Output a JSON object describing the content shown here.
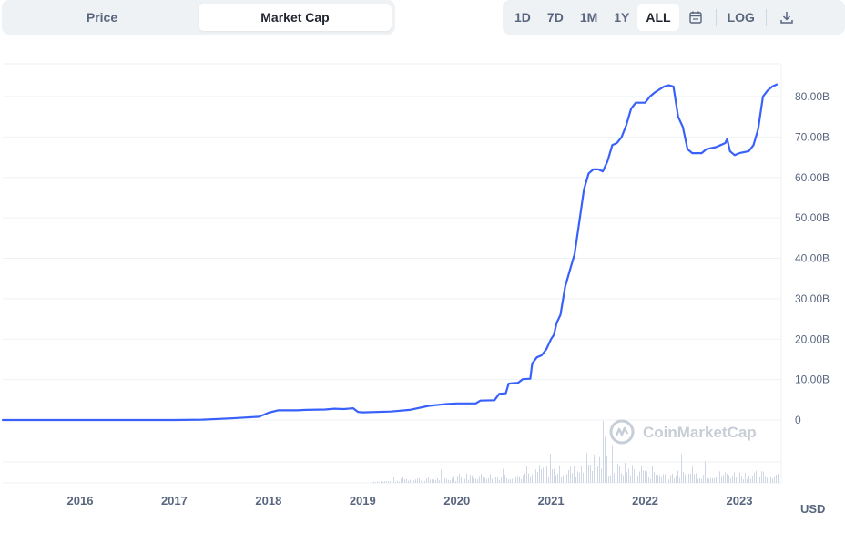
{
  "toggle": {
    "price_label": "Price",
    "market_cap_label": "Market Cap",
    "active": "market_cap"
  },
  "range": {
    "buttons": [
      "1D",
      "7D",
      "1M",
      "1Y",
      "ALL"
    ],
    "active": "ALL",
    "log_label": "LOG"
  },
  "icons": {
    "calendar": "calendar-icon",
    "download": "download-icon",
    "watermark": "coinmarketcap-logo-icon"
  },
  "watermark": {
    "text": "CoinMarketCap"
  },
  "currency": "USD",
  "colors": {
    "line": "#3861fb",
    "grid": "#eff2f5",
    "volume": "#cfd6e4",
    "text": "#58667e"
  },
  "chart_data": {
    "type": "line",
    "title": "",
    "xlabel": "",
    "ylabel": "",
    "y_unit": "B",
    "ylim": [
      0,
      85
    ],
    "xlim": [
      2015.15,
      2023.4
    ],
    "x_ticks": [
      {
        "value": 2016,
        "label": "2016"
      },
      {
        "value": 2017,
        "label": "2017"
      },
      {
        "value": 2018,
        "label": "2018"
      },
      {
        "value": 2019,
        "label": "2019"
      },
      {
        "value": 2020,
        "label": "2020"
      },
      {
        "value": 2021,
        "label": "2021"
      },
      {
        "value": 2022,
        "label": "2022"
      },
      {
        "value": 2023,
        "label": "2023"
      }
    ],
    "y_ticks": [
      {
        "value": 0,
        "label": "0"
      },
      {
        "value": 10,
        "label": "10.00B"
      },
      {
        "value": 20,
        "label": "20.00B"
      },
      {
        "value": 30,
        "label": "30.00B"
      },
      {
        "value": 40,
        "label": "40.00B"
      },
      {
        "value": 50,
        "label": "50.00B"
      },
      {
        "value": 60,
        "label": "60.00B"
      },
      {
        "value": 70,
        "label": "70.00B"
      },
      {
        "value": 80,
        "label": "80.00B"
      }
    ],
    "grid": true,
    "series": [
      {
        "values": [
          [
            2015.15,
            0.0
          ],
          [
            2016.0,
            0.0
          ],
          [
            2017.0,
            0.0
          ],
          [
            2017.3,
            0.1
          ],
          [
            2017.6,
            0.4
          ],
          [
            2017.9,
            0.8
          ],
          [
            2018.0,
            1.8
          ],
          [
            2018.1,
            2.4
          ],
          [
            2018.3,
            2.4
          ],
          [
            2018.4,
            2.5
          ],
          [
            2018.6,
            2.6
          ],
          [
            2018.7,
            2.8
          ],
          [
            2018.8,
            2.7
          ],
          [
            2018.9,
            2.9
          ],
          [
            2018.95,
            2.0
          ],
          [
            2019.0,
            1.9
          ],
          [
            2019.3,
            2.1
          ],
          [
            2019.5,
            2.5
          ],
          [
            2019.7,
            3.5
          ],
          [
            2019.9,
            4.0
          ],
          [
            2020.0,
            4.1
          ],
          [
            2020.2,
            4.1
          ],
          [
            2020.25,
            4.8
          ],
          [
            2020.4,
            4.9
          ],
          [
            2020.45,
            6.5
          ],
          [
            2020.52,
            6.6
          ],
          [
            2020.55,
            9.0
          ],
          [
            2020.6,
            9.1
          ],
          [
            2020.65,
            9.2
          ],
          [
            2020.7,
            10.1
          ],
          [
            2020.78,
            10.2
          ],
          [
            2020.8,
            14.0
          ],
          [
            2020.85,
            15.5
          ],
          [
            2020.9,
            16.0
          ],
          [
            2020.95,
            17.5
          ],
          [
            2021.0,
            20.0
          ],
          [
            2021.03,
            21.0
          ],
          [
            2021.06,
            24.0
          ],
          [
            2021.1,
            26.0
          ],
          [
            2021.15,
            33.0
          ],
          [
            2021.2,
            37.0
          ],
          [
            2021.25,
            41.0
          ],
          [
            2021.3,
            49.0
          ],
          [
            2021.35,
            57.0
          ],
          [
            2021.4,
            61.0
          ],
          [
            2021.45,
            62.0
          ],
          [
            2021.5,
            62.0
          ],
          [
            2021.55,
            61.5
          ],
          [
            2021.6,
            64.0
          ],
          [
            2021.65,
            68.0
          ],
          [
            2021.7,
            68.5
          ],
          [
            2021.75,
            70.0
          ],
          [
            2021.8,
            73.0
          ],
          [
            2021.85,
            77.0
          ],
          [
            2021.9,
            78.5
          ],
          [
            2022.0,
            78.5
          ],
          [
            2022.05,
            80.0
          ],
          [
            2022.1,
            81.0
          ],
          [
            2022.2,
            82.5
          ],
          [
            2022.25,
            82.8
          ],
          [
            2022.3,
            82.5
          ],
          [
            2022.35,
            75.0
          ],
          [
            2022.4,
            72.5
          ],
          [
            2022.45,
            67.0
          ],
          [
            2022.5,
            66.0
          ],
          [
            2022.6,
            66.0
          ],
          [
            2022.65,
            67.0
          ],
          [
            2022.75,
            67.5
          ],
          [
            2022.8,
            68.0
          ],
          [
            2022.85,
            68.5
          ],
          [
            2022.87,
            69.5
          ],
          [
            2022.9,
            66.5
          ],
          [
            2022.95,
            65.5
          ],
          [
            2023.0,
            66.0
          ],
          [
            2023.1,
            66.5
          ],
          [
            2023.15,
            68.0
          ],
          [
            2023.2,
            72.0
          ],
          [
            2023.25,
            80.0
          ],
          [
            2023.3,
            81.5
          ],
          [
            2023.35,
            82.5
          ],
          [
            2023.4,
            83.0
          ]
        ]
      }
    ]
  }
}
